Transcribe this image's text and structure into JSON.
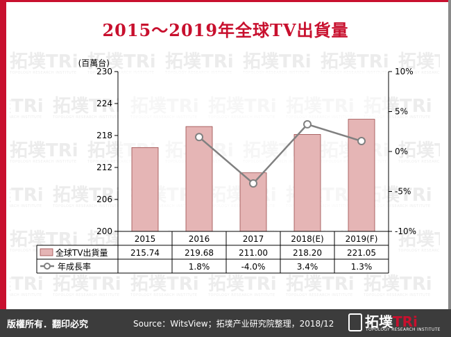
{
  "title": "2015～2019年全球TV出貨量",
  "chart_data": {
    "type": "bar",
    "categories": [
      "2015",
      "2016",
      "2017",
      "2018(E)",
      "2019(F)"
    ],
    "series": [
      {
        "name": "全球TV出貨量",
        "type": "bar",
        "axis": "left",
        "values": [
          215.74,
          219.68,
          211.0,
          218.2,
          221.05
        ],
        "labels": [
          "215.74",
          "219.68",
          "211.00",
          "218.20",
          "221.05"
        ],
        "color": "#e5b5b5"
      },
      {
        "name": "年成長率",
        "type": "line",
        "axis": "right",
        "values": [
          null,
          1.8,
          -4.0,
          3.4,
          1.3
        ],
        "labels": [
          "",
          "1.8%",
          "-4.0%",
          "3.4%",
          "1.3%"
        ],
        "color": "#808080"
      }
    ],
    "ylabel": "(百萬台)",
    "ylim": [
      200,
      230
    ],
    "yticks": [
      200,
      206,
      212,
      218,
      224,
      230
    ],
    "y2lim": [
      -10,
      10
    ],
    "y2ticks": [
      -10,
      -5,
      0,
      5,
      10
    ],
    "y2ticklabels": [
      "-10%",
      "-5%",
      "0%",
      "5%",
      "10%"
    ],
    "legend": "data-table"
  },
  "watermark": {
    "brand": "拓墣TRi",
    "sub": "TOPOLOGY RESEARCH INSTITUTE"
  },
  "footer": {
    "rights": "版權所有．翻印必究",
    "source": "Source：WitsView；拓墣产业研究院整理，2018/12",
    "logo_name": "拓墣",
    "logo_tri": "TRi",
    "logo_sub": "TOPOLOGY RESEARCH INSTITUTE"
  },
  "colors": {
    "accent": "#c8102e",
    "bar": "#e5b5b5",
    "bar_border": "#9a4a4a",
    "line": "#808080",
    "footer_bg": "#3c3c3c"
  }
}
